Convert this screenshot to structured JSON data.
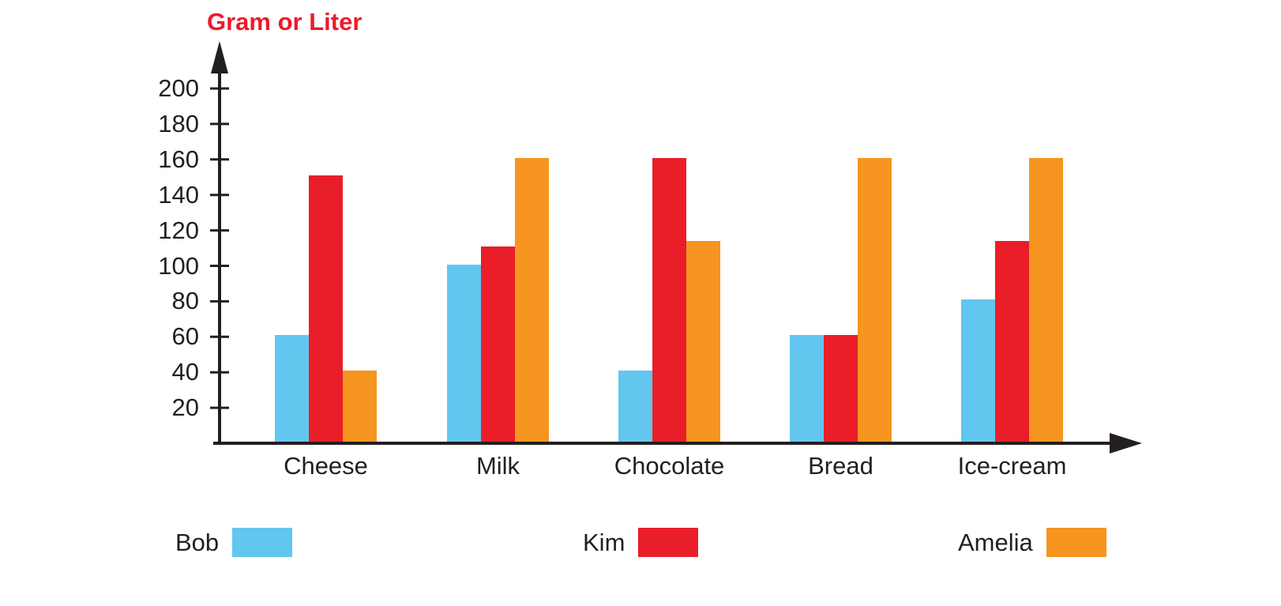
{
  "chart_data": {
    "type": "bar",
    "title": "Gram or Liter",
    "ylabel": "Gram or Liter",
    "xlabel": "",
    "categories": [
      "Cheese",
      "Milk",
      "Chocolate",
      "Bread",
      "Ice-cream"
    ],
    "series": [
      {
        "name": "Bob",
        "color": "#62c6ef",
        "values": [
          60,
          100,
          40,
          60,
          80
        ]
      },
      {
        "name": "Kim",
        "color": "#e91e29",
        "values": [
          150,
          110,
          160,
          60,
          113
        ]
      },
      {
        "name": "Amelia",
        "color": "#f6951f",
        "values": [
          40,
          160,
          113,
          160,
          160
        ]
      }
    ],
    "y_ticks": [
      20,
      40,
      60,
      80,
      100,
      120,
      140,
      160,
      180,
      200
    ],
    "ylim": [
      0,
      224
    ],
    "grid": false,
    "legend_position": "bottom",
    "title_color": "#ec1b2b",
    "axis_color": "#231f20",
    "text_color": "#231f20"
  }
}
